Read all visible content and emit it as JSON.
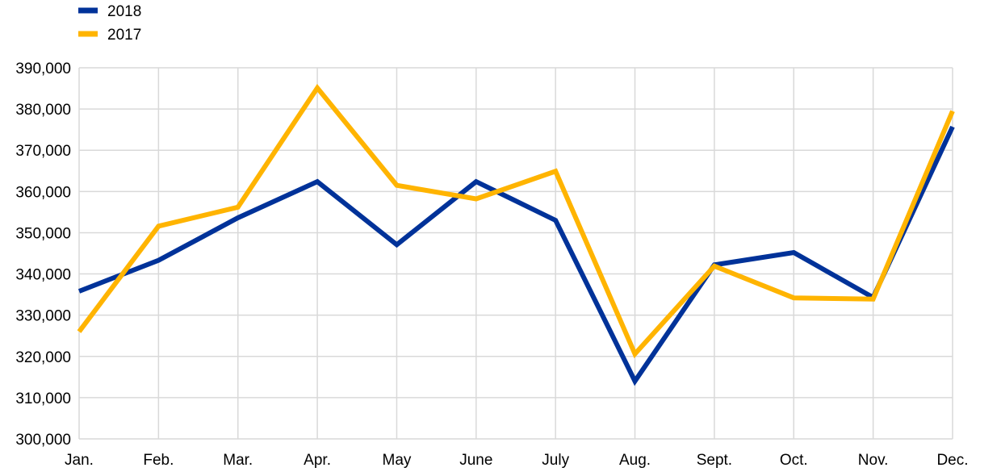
{
  "chart_data": {
    "type": "line",
    "categories": [
      "Jan.",
      "Feb.",
      "Mar.",
      "Apr.",
      "May",
      "June",
      "July",
      "Aug.",
      "Sept.",
      "Oct.",
      "Nov.",
      "Dec."
    ],
    "series": [
      {
        "name": "2018",
        "color": "#003299",
        "values": [
          335800,
          343300,
          353600,
          362400,
          347100,
          362400,
          353000,
          314000,
          342200,
          345200,
          334300,
          375700
        ]
      },
      {
        "name": "2017",
        "color": "#FFB400",
        "values": [
          326000,
          351600,
          356200,
          385100,
          361500,
          358200,
          364900,
          320600,
          341900,
          334200,
          333900,
          379500
        ]
      }
    ],
    "ylim": [
      300000,
      390000
    ],
    "yticks": [
      "300,000",
      "310,000",
      "320,000",
      "330,000",
      "340,000",
      "350,000",
      "360,000",
      "370,000",
      "380,000",
      "390,000"
    ],
    "grid": true,
    "legend": "top-left"
  }
}
